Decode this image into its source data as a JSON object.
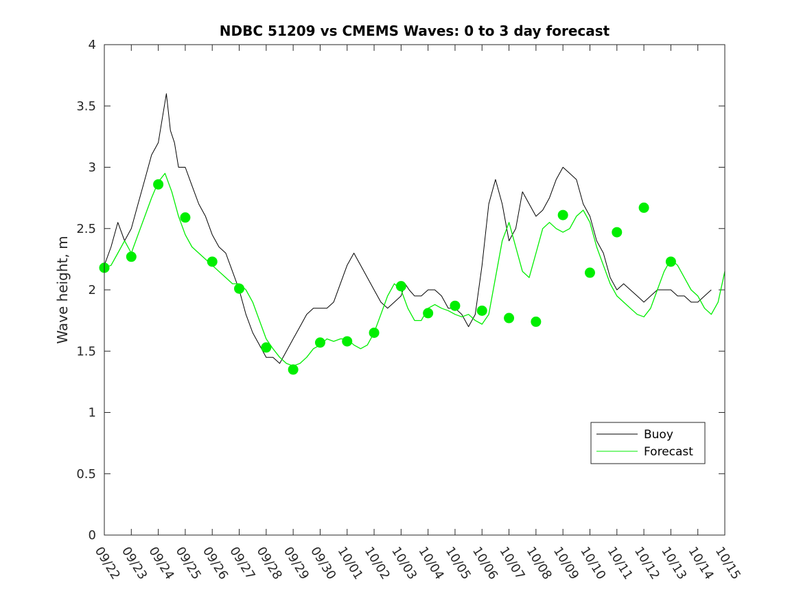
{
  "chart_data": {
    "type": "line",
    "title": "NDBC 51209 vs CMEMS Waves: 0 to 3 day forecast",
    "xlabel": "",
    "ylabel": "Wave height, m",
    "x_tick_labels": [
      "09/22",
      "09/23",
      "09/24",
      "09/25",
      "09/26",
      "09/27",
      "09/28",
      "09/29",
      "09/30",
      "10/01",
      "10/02",
      "10/03",
      "10/04",
      "10/05",
      "10/06",
      "10/07",
      "10/08",
      "10/09",
      "10/10",
      "10/11",
      "10/12",
      "10/13",
      "10/14",
      "10/15"
    ],
    "y_tick_labels": [
      "0",
      "0.5",
      "1",
      "1.5",
      "2",
      "2.5",
      "3",
      "3.5",
      "4"
    ],
    "xlim": [
      0,
      23
    ],
    "ylim": [
      0,
      4
    ],
    "grid": false,
    "legend_position": "lower-right",
    "colors": {
      "buoy": "#000000",
      "forecast": "#00ee00"
    },
    "series": [
      {
        "name": "Buoy",
        "style": "line",
        "x": [
          0,
          0.25,
          0.5,
          0.75,
          1,
          1.25,
          1.5,
          1.75,
          2,
          2.15,
          2.3,
          2.45,
          2.6,
          2.75,
          3,
          3.25,
          3.5,
          3.75,
          4,
          4.25,
          4.5,
          4.75,
          5,
          5.25,
          5.5,
          5.75,
          6,
          6.25,
          6.5,
          6.75,
          7,
          7.25,
          7.5,
          7.75,
          8,
          8.25,
          8.5,
          8.75,
          9,
          9.25,
          9.5,
          9.75,
          10,
          10.25,
          10.5,
          10.75,
          11,
          11.15,
          11.3,
          11.5,
          11.75,
          12,
          12.25,
          12.5,
          12.75,
          13,
          13.25,
          13.5,
          13.75,
          14,
          14.25,
          14.5,
          14.75,
          15,
          15.25,
          15.5,
          15.75,
          16,
          16.25,
          16.5,
          16.75,
          17,
          17.25,
          17.5,
          17.75,
          18,
          18.25,
          18.5,
          18.75,
          19,
          19.25,
          19.5,
          19.75,
          20,
          20.25,
          20.5,
          20.75,
          21,
          21.25,
          21.5,
          21.75,
          22,
          22.25,
          22.5
        ],
        "y": [
          2.2,
          2.35,
          2.55,
          2.4,
          2.5,
          2.7,
          2.9,
          3.1,
          3.2,
          3.4,
          3.6,
          3.3,
          3.2,
          3.0,
          3.0,
          2.85,
          2.7,
          2.6,
          2.45,
          2.35,
          2.3,
          2.15,
          2.0,
          1.8,
          1.65,
          1.55,
          1.45,
          1.45,
          1.4,
          1.5,
          1.6,
          1.7,
          1.8,
          1.85,
          1.85,
          1.85,
          1.9,
          2.05,
          2.2,
          2.3,
          2.2,
          2.1,
          2.0,
          1.9,
          1.85,
          1.9,
          1.95,
          2.05,
          2.0,
          1.95,
          1.95,
          2.0,
          2.0,
          1.95,
          1.85,
          1.85,
          1.8,
          1.7,
          1.8,
          2.2,
          2.7,
          2.9,
          2.7,
          2.4,
          2.5,
          2.8,
          2.7,
          2.6,
          2.65,
          2.75,
          2.9,
          3.0,
          2.95,
          2.9,
          2.7,
          2.6,
          2.4,
          2.3,
          2.1,
          2.0,
          2.05,
          2.0,
          1.95,
          1.9,
          1.95,
          2.0,
          2.0,
          2.0,
          1.95,
          1.95,
          1.9,
          1.9,
          1.95,
          2.0
        ]
      },
      {
        "name": "Forecast",
        "style": "line",
        "x": [
          0,
          0.25,
          0.5,
          0.75,
          1,
          1.25,
          1.5,
          1.75,
          2,
          2.25,
          2.5,
          2.75,
          3,
          3.25,
          3.5,
          3.75,
          4,
          4.25,
          4.5,
          4.75,
          5,
          5.25,
          5.5,
          5.75,
          6,
          6.25,
          6.5,
          6.75,
          7,
          7.25,
          7.5,
          7.75,
          8,
          8.25,
          8.5,
          8.75,
          9,
          9.25,
          9.5,
          9.75,
          10,
          10.25,
          10.5,
          10.75,
          11,
          11.25,
          11.5,
          11.75,
          12,
          12.25,
          12.5,
          12.75,
          13,
          13.25,
          13.5,
          13.75,
          14,
          14.25,
          14.5,
          14.75,
          15,
          15.25,
          15.5,
          15.75,
          16,
          16.25,
          16.5,
          16.75,
          17,
          17.25,
          17.5,
          17.75,
          18,
          18.25,
          18.5,
          18.75,
          19,
          19.25,
          19.5,
          19.75,
          20,
          20.25,
          20.5,
          20.75,
          21,
          21.25,
          21.5,
          21.75,
          22,
          22.25,
          22.5,
          22.75,
          23
        ],
        "y": [
          2.18,
          2.2,
          2.3,
          2.4,
          2.3,
          2.45,
          2.6,
          2.75,
          2.88,
          2.95,
          2.8,
          2.6,
          2.45,
          2.35,
          2.3,
          2.25,
          2.2,
          2.15,
          2.1,
          2.05,
          2.05,
          2.0,
          1.9,
          1.75,
          1.6,
          1.52,
          1.45,
          1.4,
          1.38,
          1.4,
          1.45,
          1.52,
          1.55,
          1.6,
          1.58,
          1.6,
          1.6,
          1.55,
          1.52,
          1.55,
          1.65,
          1.8,
          1.95,
          2.05,
          2.0,
          1.85,
          1.75,
          1.75,
          1.85,
          1.88,
          1.85,
          1.83,
          1.8,
          1.78,
          1.8,
          1.75,
          1.72,
          1.8,
          2.1,
          2.4,
          2.55,
          2.35,
          2.15,
          2.1,
          2.3,
          2.5,
          2.55,
          2.5,
          2.47,
          2.5,
          2.6,
          2.65,
          2.55,
          2.35,
          2.2,
          2.05,
          1.95,
          1.9,
          1.85,
          1.8,
          1.78,
          1.85,
          2.0,
          2.15,
          2.25,
          2.2,
          2.1,
          2.0,
          1.95,
          1.85,
          1.8,
          1.9,
          2.15
        ]
      },
      {
        "name": "",
        "style": "markers",
        "x": [
          0,
          1,
          2,
          3,
          4,
          5,
          6,
          7,
          8,
          9,
          10,
          11,
          12,
          13,
          14,
          15,
          16,
          17,
          18,
          19,
          20,
          21
        ],
        "y": [
          2.18,
          2.27,
          2.86,
          2.59,
          2.23,
          2.01,
          1.53,
          1.35,
          1.57,
          1.58,
          1.65,
          2.03,
          1.81,
          1.87,
          1.83,
          1.77,
          1.74,
          2.61,
          2.14,
          2.47,
          2.67,
          2.23
        ]
      }
    ]
  }
}
